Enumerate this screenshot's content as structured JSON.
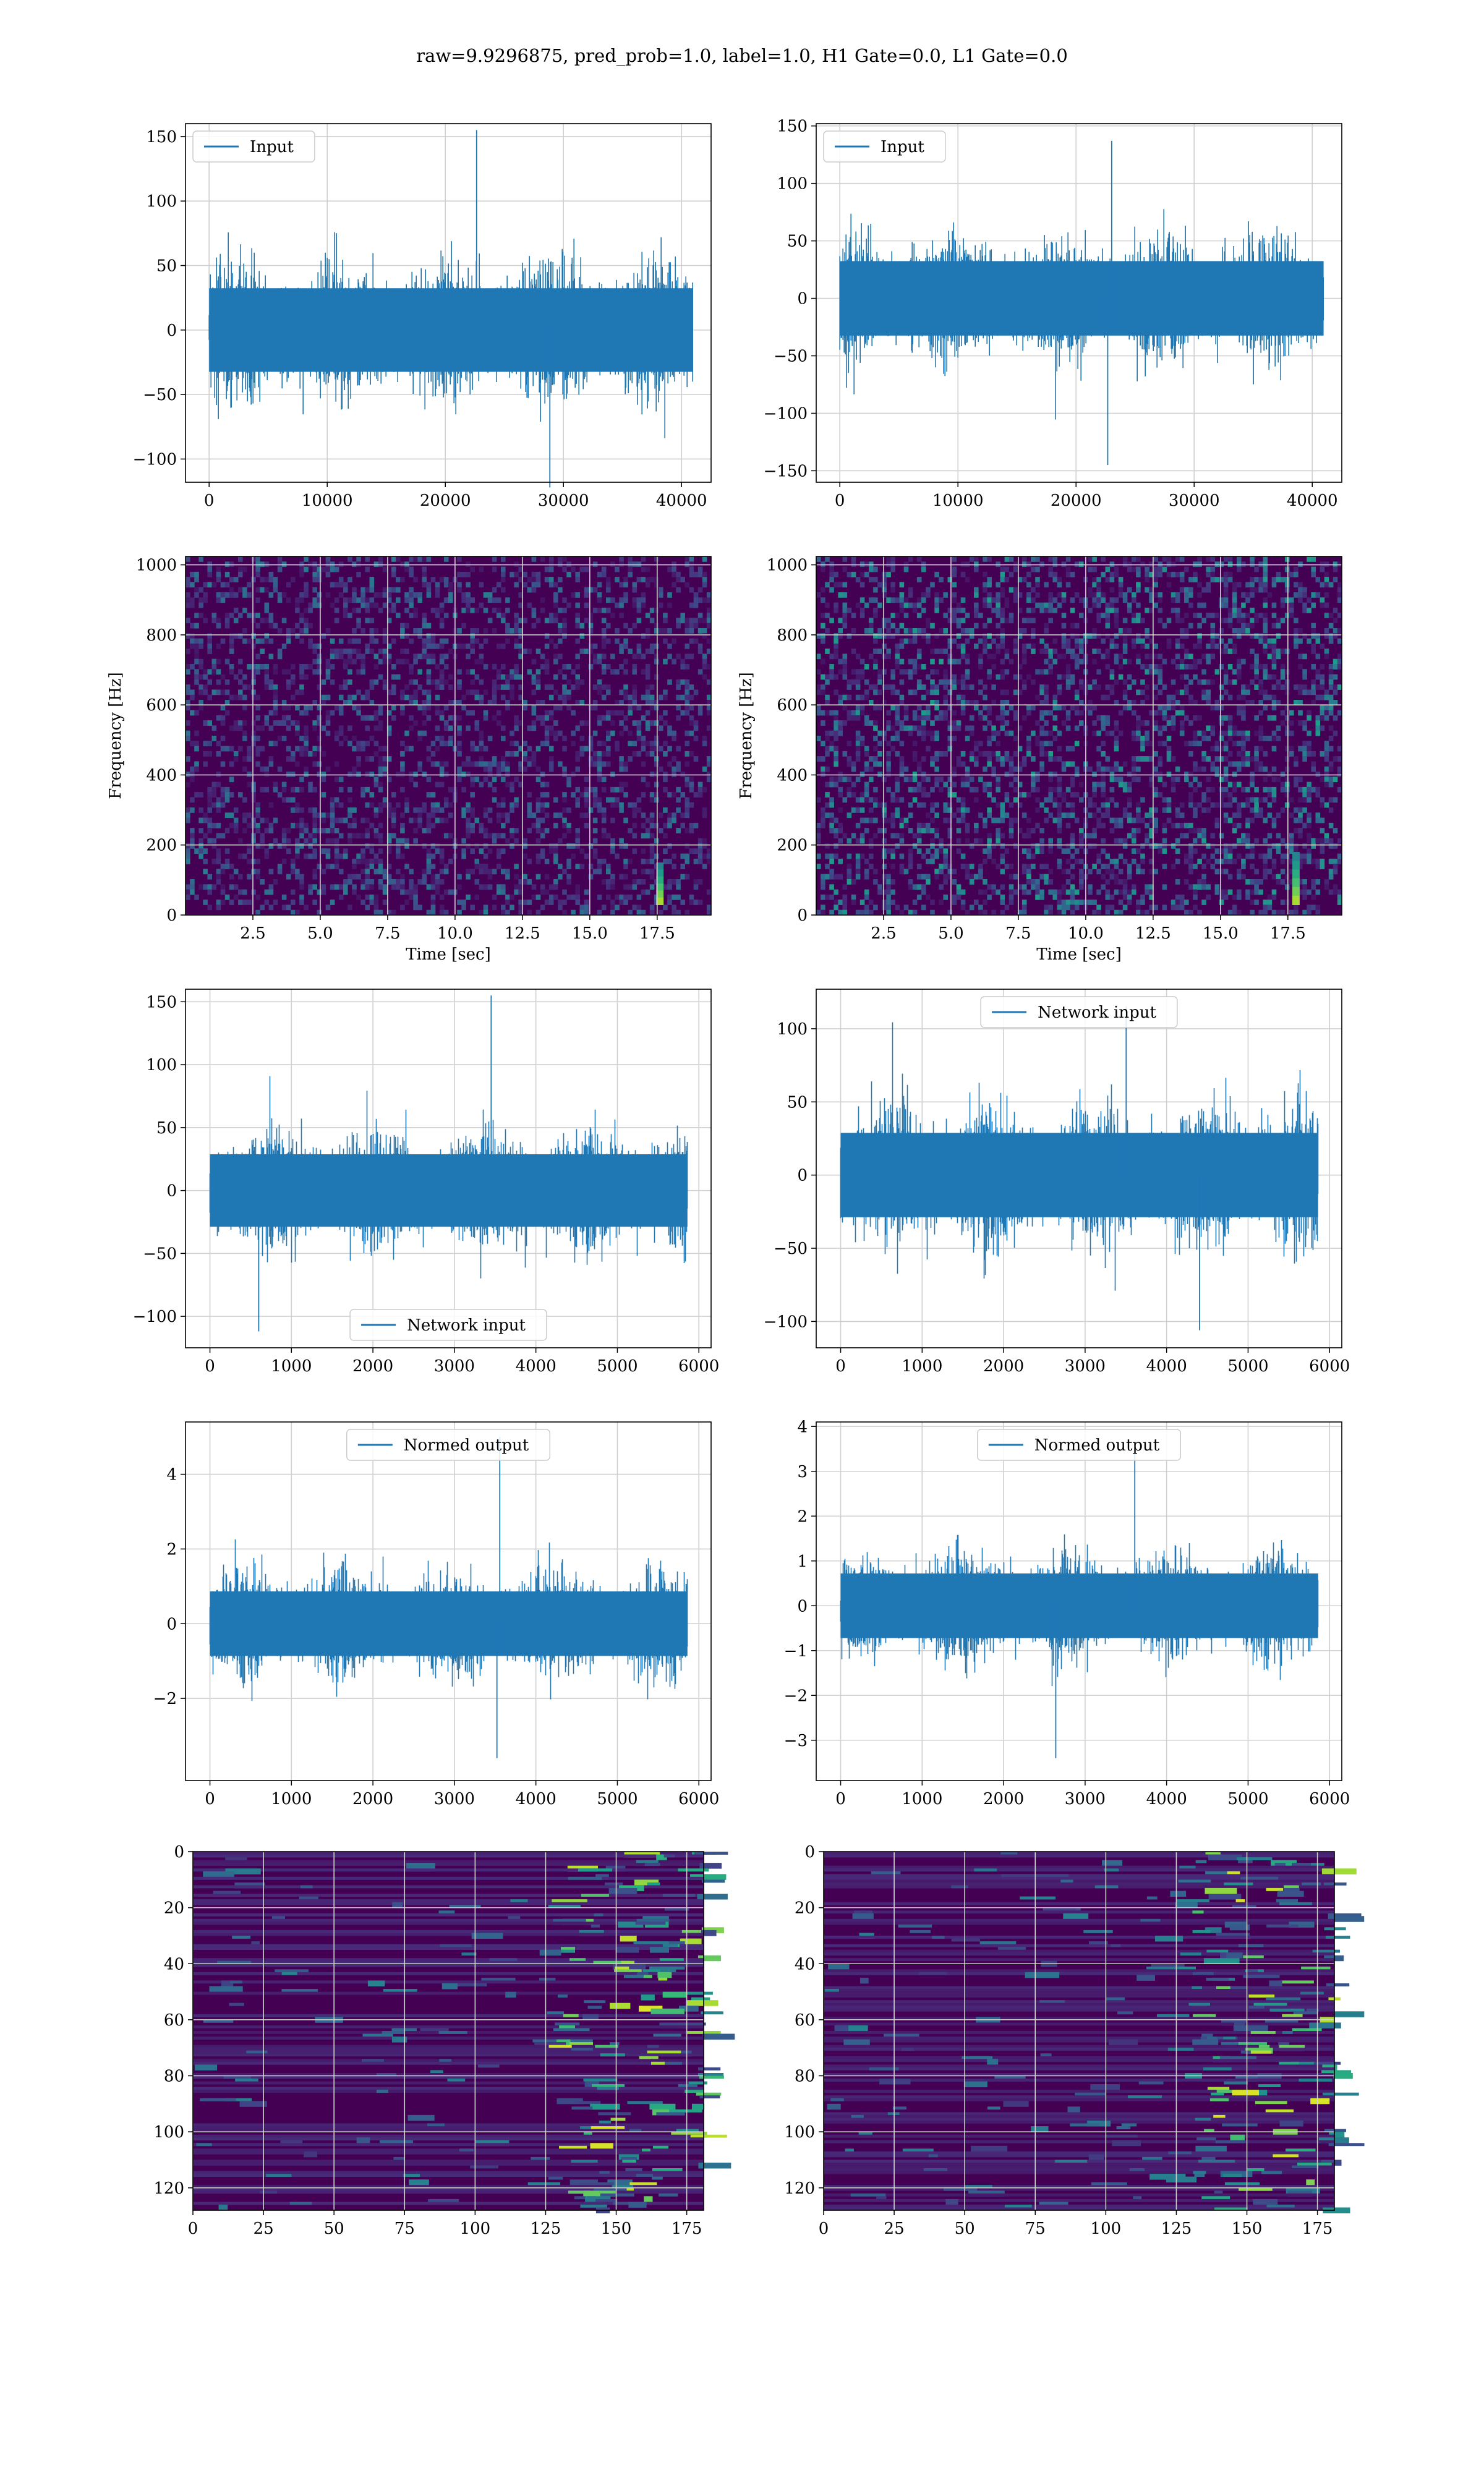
{
  "figure": {
    "title": "raw=9.9296875, pred_prob=1.0, label=1.0, H1 Gate=0.0, L1 Gate=0.0",
    "colors": {
      "line": "#1f77b4",
      "grid": "#d0d0d0",
      "viridis_dark": "#440154"
    }
  },
  "chart_data": [
    {
      "id": "input-h1",
      "type": "line",
      "series": [
        {
          "name": "Input",
          "approx_sample_count": 40960
        }
      ],
      "xlim": [
        -2000,
        42500
      ],
      "ylim": [
        -118,
        160
      ],
      "xticks": [
        0,
        10000,
        20000,
        30000,
        40000
      ],
      "yticks": [
        -100,
        -50,
        0,
        50,
        100,
        150
      ],
      "legend": "upper left",
      "grid": true,
      "envelope": {
        "x_start": 0,
        "x_end": 40960,
        "typical_abs": 45,
        "peak_max": 155,
        "peak_min": -122
      }
    },
    {
      "id": "input-l1",
      "type": "line",
      "series": [
        {
          "name": "Input",
          "approx_sample_count": 40960
        }
      ],
      "xlim": [
        -2000,
        42500
      ],
      "ylim": [
        -160,
        152
      ],
      "xticks": [
        0,
        10000,
        20000,
        30000,
        40000
      ],
      "yticks": [
        -150,
        -100,
        -50,
        0,
        50,
        100,
        150
      ],
      "legend": "upper left",
      "grid": true,
      "envelope": {
        "x_start": 0,
        "x_end": 40960,
        "typical_abs": 45,
        "peak_max": 137,
        "peak_min": -145
      }
    },
    {
      "id": "spectrogram-h1",
      "type": "heatmap",
      "colormap": "viridis",
      "xlabel": "Time [sec]",
      "ylabel": "Frequency [Hz]",
      "xlim": [
        0,
        19.5
      ],
      "ylim": [
        0,
        1024
      ],
      "xticks": [
        2.5,
        5.0,
        7.5,
        10.0,
        12.5,
        15.0,
        17.5
      ],
      "yticks": [
        0,
        200,
        400,
        600,
        800,
        1000
      ],
      "grid": true,
      "hotspot": {
        "t": 17.6,
        "f_low": 30,
        "f_high": 150
      }
    },
    {
      "id": "spectrogram-l1",
      "type": "heatmap",
      "colormap": "viridis",
      "xlabel": "Time [sec]",
      "ylabel": "Frequency [Hz]",
      "xlim": [
        0,
        19.5
      ],
      "ylim": [
        0,
        1024
      ],
      "xticks": [
        2.5,
        5.0,
        7.5,
        10.0,
        12.5,
        15.0,
        17.5
      ],
      "yticks": [
        0,
        200,
        400,
        600,
        800,
        1000
      ],
      "grid": true,
      "hotspot": {
        "t": 17.8,
        "f_low": 30,
        "f_high": 180
      }
    },
    {
      "id": "network-input-h1",
      "type": "line",
      "series": [
        {
          "name": "Network input",
          "approx_sample_count": 5860
        }
      ],
      "xlim": [
        -300,
        6150
      ],
      "ylim": [
        -125,
        160
      ],
      "xticks": [
        0,
        1000,
        2000,
        3000,
        4000,
        5000,
        6000
      ],
      "yticks": [
        -100,
        -50,
        0,
        50,
        100,
        150
      ],
      "legend": "lower center",
      "grid": true,
      "envelope": {
        "x_start": 0,
        "x_end": 5860,
        "typical_abs": 40,
        "peak_max": 155,
        "peak_min": -112
      }
    },
    {
      "id": "network-input-l1",
      "type": "line",
      "series": [
        {
          "name": "Network input",
          "approx_sample_count": 5860
        }
      ],
      "xlim": [
        -300,
        6150
      ],
      "ylim": [
        -118,
        127
      ],
      "xticks": [
        0,
        1000,
        2000,
        3000,
        4000,
        5000,
        6000
      ],
      "yticks": [
        -100,
        -50,
        0,
        50,
        100
      ],
      "legend": "upper center",
      "grid": true,
      "envelope": {
        "x_start": 0,
        "x_end": 5860,
        "typical_abs": 40,
        "peak_max": 115,
        "peak_min": -106
      }
    },
    {
      "id": "normed-output-h1",
      "type": "line",
      "series": [
        {
          "name": "Normed output",
          "approx_sample_count": 5860
        }
      ],
      "xlim": [
        -300,
        6150
      ],
      "ylim": [
        -4.2,
        5.4
      ],
      "xticks": [
        0,
        1000,
        2000,
        3000,
        4000,
        5000,
        6000
      ],
      "yticks": [
        -2,
        0,
        2,
        4
      ],
      "legend": "upper center",
      "grid": true,
      "envelope": {
        "x_start": 0,
        "x_end": 5860,
        "typical_abs": 1.2,
        "peak_max": 5.0,
        "peak_min": -3.6
      }
    },
    {
      "id": "normed-output-l1",
      "type": "line",
      "series": [
        {
          "name": "Normed output",
          "approx_sample_count": 5860
        }
      ],
      "xlim": [
        -300,
        6150
      ],
      "ylim": [
        -3.9,
        4.1
      ],
      "xticks": [
        0,
        1000,
        2000,
        3000,
        4000,
        5000,
        6000
      ],
      "yticks": [
        -3,
        -2,
        -1,
        0,
        1,
        2,
        3,
        4
      ],
      "legend": "upper center",
      "grid": true,
      "envelope": {
        "x_start": 0,
        "x_end": 5860,
        "typical_abs": 1.0,
        "peak_max": 3.5,
        "peak_min": -3.4
      }
    },
    {
      "id": "activation-map-h1",
      "type": "heatmap",
      "colormap": "viridis",
      "xlim": [
        0,
        181
      ],
      "ylim": [
        128,
        0
      ],
      "xticks": [
        0,
        25,
        50,
        75,
        100,
        125,
        150,
        175
      ],
      "yticks": [
        0,
        20,
        40,
        60,
        80,
        100,
        120
      ],
      "grid": true
    },
    {
      "id": "activation-map-l1",
      "type": "heatmap",
      "colormap": "viridis",
      "xlim": [
        0,
        181
      ],
      "ylim": [
        128,
        0
      ],
      "xticks": [
        0,
        25,
        50,
        75,
        100,
        125,
        150,
        175
      ],
      "yticks": [
        0,
        20,
        40,
        60,
        80,
        100,
        120
      ],
      "grid": true
    }
  ]
}
